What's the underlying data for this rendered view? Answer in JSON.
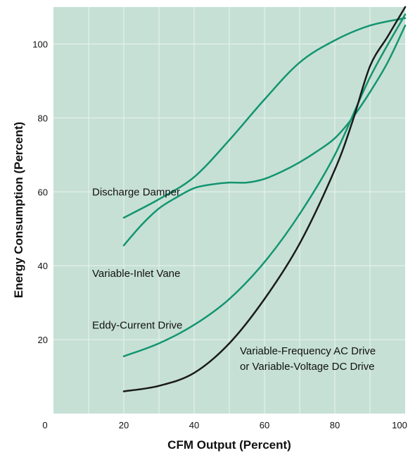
{
  "chart_data": {
    "type": "line",
    "title": "",
    "xlabel": "CFM Output (Percent)",
    "ylabel": "Energy Consumption (Percent)",
    "xlim": [
      0,
      100
    ],
    "ylim": [
      0,
      110
    ],
    "x_ticks": [
      0,
      20,
      40,
      60,
      80,
      100
    ],
    "y_ticks": [
      20,
      40,
      60,
      80,
      100
    ],
    "grid": true,
    "background_color": "#c6e0d6",
    "grid_color": "#eaf3ef",
    "series": [
      {
        "name": "Discharge Damper",
        "color": "#13956f",
        "x": [
          20,
          30,
          40,
          50,
          60,
          70,
          80,
          90,
          100
        ],
        "y": [
          53,
          58,
          64,
          74,
          85,
          95,
          101,
          105,
          107
        ]
      },
      {
        "name": "Variable-Inlet Vane",
        "color": "#13956f",
        "x": [
          20,
          25,
          30,
          35,
          40,
          45,
          50,
          55,
          60,
          65,
          70,
          75,
          80,
          85,
          90,
          95,
          100
        ],
        "y": [
          45.5,
          51,
          55.5,
          58.5,
          61,
          62,
          62.5,
          62.5,
          63.5,
          65.5,
          68,
          71,
          74.5,
          80,
          87,
          95,
          105
        ]
      },
      {
        "name": "Eddy-Current Drive",
        "color": "#13956f",
        "x": [
          20,
          30,
          40,
          50,
          60,
          70,
          80,
          90,
          100
        ],
        "y": [
          15.5,
          19,
          24,
          31,
          41,
          54,
          70,
          91,
          108
        ]
      },
      {
        "name": "Variable-Frequency AC Drive\nor Variable-Voltage DC Drive",
        "color": "#1a1a1a",
        "x": [
          20,
          30,
          40,
          50,
          60,
          70,
          80,
          85,
          90,
          95,
          100
        ],
        "y": [
          6,
          7.5,
          11,
          19,
          31,
          46,
          66,
          79,
          94,
          102,
          110
        ]
      }
    ],
    "labels": [
      {
        "lines": [
          "Discharge Damper"
        ],
        "x": 11,
        "y": 59,
        "anchor": "start"
      },
      {
        "lines": [
          "Variable-Inlet Vane"
        ],
        "x": 11,
        "y": 37,
        "anchor": "start"
      },
      {
        "lines": [
          "Eddy-Current Drive"
        ],
        "x": 11,
        "y": 23,
        "anchor": "start"
      },
      {
        "lines": [
          "Variable-Frequency AC Drive",
          "or Variable-Voltage DC Drive"
        ],
        "x": 53,
        "y": 16,
        "anchor": "start"
      }
    ]
  }
}
